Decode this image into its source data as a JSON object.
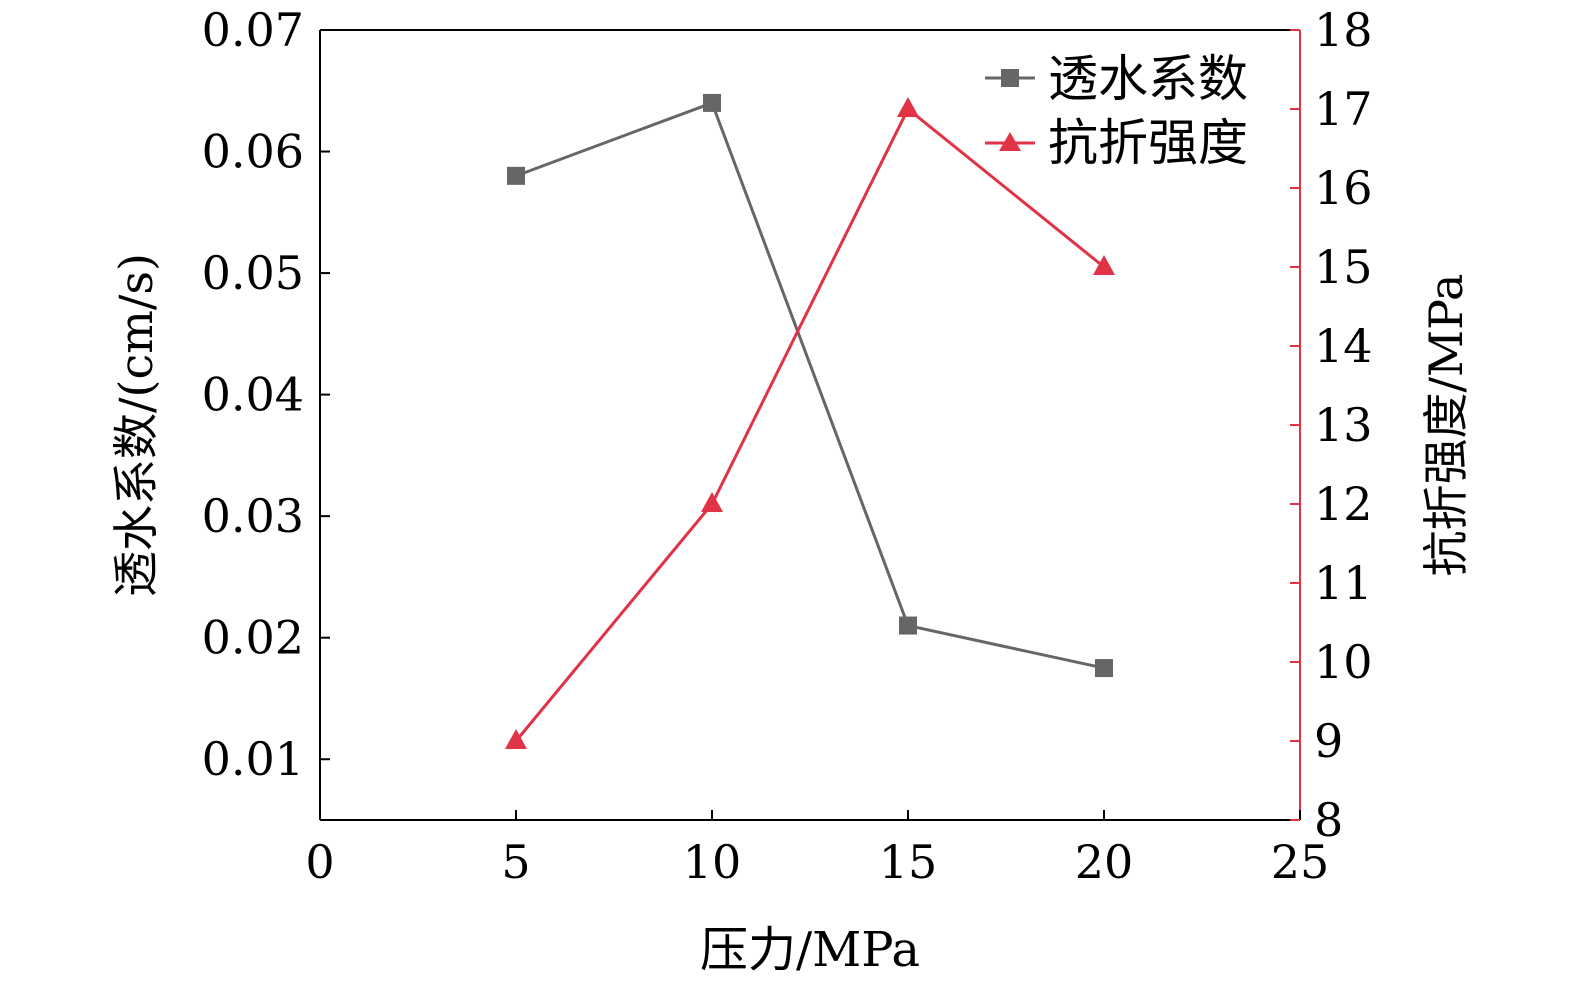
{
  "chart_data": {
    "type": "line",
    "title": "",
    "xlabel": "压力/MPa",
    "ylabel_left": "透水系数/(cm/s)",
    "ylabel_right": "抗折强度/MPa",
    "xlim": [
      0,
      25
    ],
    "x_ticks": [
      "0",
      "5",
      "10",
      "15",
      "20",
      "25"
    ],
    "x_tick_values": [
      0,
      5,
      10,
      15,
      20,
      25
    ],
    "ylim_left": [
      0.005,
      0.07
    ],
    "y_left_ticks": [
      "0.01",
      "0.02",
      "0.03",
      "0.04",
      "0.05",
      "0.06",
      "0.07"
    ],
    "y_left_tick_values": [
      0.01,
      0.02,
      0.03,
      0.04,
      0.05,
      0.06,
      0.07
    ],
    "ylim_right": [
      8,
      18
    ],
    "y_right_ticks": [
      "8",
      "9",
      "10",
      "11",
      "12",
      "13",
      "14",
      "15",
      "16",
      "17",
      "18"
    ],
    "y_right_tick_values": [
      8,
      9,
      10,
      11,
      12,
      13,
      14,
      15,
      16,
      17,
      18
    ],
    "legend_position": "top-right",
    "grid": false,
    "x": [
      5,
      10,
      15,
      20
    ],
    "series": [
      {
        "name": "透水系数",
        "axis": "left",
        "marker": "square",
        "color": "#666666",
        "values": [
          0.058,
          0.064,
          0.021,
          0.0175
        ]
      },
      {
        "name": "抗折强度",
        "axis": "right",
        "marker": "triangle",
        "color": "#e03346",
        "values": [
          9,
          12,
          17,
          15
        ]
      }
    ]
  },
  "colors": {
    "left_axis": "#000000",
    "right_axis": "#e03346",
    "background": "#ffffff"
  }
}
